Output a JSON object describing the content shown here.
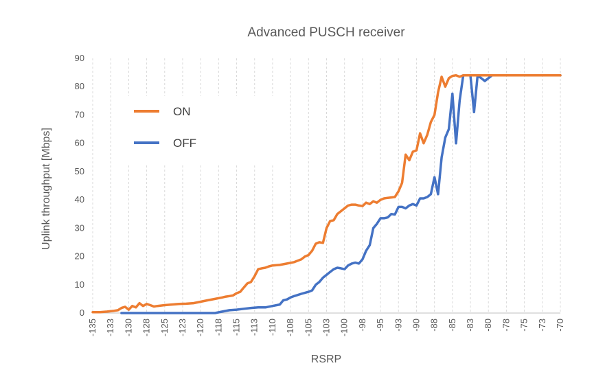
{
  "chart_data": {
    "type": "line",
    "title": "Advanced PUSCH receiver",
    "xlabel": "RSRP",
    "ylabel": "Uplink throughput [Mbps]",
    "xlim": [
      -135,
      -70
    ],
    "ylim": [
      0,
      90
    ],
    "yticks": [
      0,
      10,
      20,
      30,
      40,
      50,
      60,
      70,
      80,
      90
    ],
    "xtick_values": [
      -135,
      -132.5,
      -130,
      -127.5,
      -125,
      -122.5,
      -120,
      -117.5,
      -115,
      -112.5,
      -110,
      -107.5,
      -105,
      -102.5,
      -100,
      -97.5,
      -95,
      -92.5,
      -90,
      -87.5,
      -85,
      -82.5,
      -80,
      -77.5,
      -75,
      -72.5,
      -70
    ],
    "xtick_labels": [
      "-135",
      "-133",
      "-130",
      "-128",
      "-125",
      "-123",
      "-120",
      "-118",
      "-115",
      "-113",
      "-110",
      "-108",
      "-105",
      "-103",
      "-100",
      "-98",
      "-95",
      "-93",
      "-90",
      "-88",
      "-85",
      "-83",
      "-80",
      "-78",
      "-75",
      "-73",
      "-70"
    ],
    "grid": "vertical dashed",
    "legend_position": "upper-left",
    "series": [
      {
        "name": "ON",
        "color": "#ed7d31",
        "x": [
          -135,
          -134,
          -133,
          -132,
          -131.5,
          -131,
          -130.5,
          -130,
          -129.5,
          -129,
          -128.5,
          -128,
          -127.5,
          -127,
          -126.5,
          -126,
          -125,
          -124,
          -123,
          -122,
          -121,
          -120,
          -119,
          -118,
          -117,
          -116.5,
          -116,
          -115.5,
          -115,
          -114.5,
          -114,
          -113.5,
          -113,
          -112.5,
          -112,
          -111.5,
          -111,
          -110.5,
          -110,
          -109,
          -108,
          -107,
          -106,
          -105.5,
          -105,
          -104.5,
          -104,
          -103.5,
          -103,
          -102.5,
          -102,
          -101.5,
          -101,
          -100.5,
          -100,
          -99.5,
          -99,
          -98.5,
          -98,
          -97.5,
          -97,
          -96.5,
          -96,
          -95.5,
          -95,
          -94.5,
          -94,
          -93,
          -92.5,
          -92,
          -91.5,
          -91,
          -90.5,
          -90,
          -89.5,
          -89,
          -88.5,
          -88,
          -87.5,
          -87,
          -86.5,
          -86,
          -85.5,
          -85,
          -84.5,
          -84,
          -83.5,
          -83,
          -82.5,
          -82,
          -81.5,
          -81,
          -80.5,
          -80,
          -79.5,
          -79,
          -78,
          -77,
          -76,
          -75,
          -74,
          -73,
          -72,
          -71,
          -70
        ],
        "values": [
          0.3,
          0.3,
          0.5,
          0.8,
          1.0,
          1.8,
          2.2,
          1.2,
          2.5,
          2.0,
          3.5,
          2.5,
          3.2,
          2.8,
          2.3,
          2.5,
          2.8,
          3.0,
          3.2,
          3.3,
          3.5,
          4.0,
          4.5,
          5.0,
          5.5,
          5.8,
          6.0,
          6.2,
          7.0,
          7.5,
          9.0,
          10.5,
          11.0,
          13.0,
          15.5,
          15.8,
          16.0,
          16.5,
          16.8,
          17.0,
          17.5,
          18.0,
          19.0,
          20.0,
          20.5,
          22.0,
          24.5,
          25.0,
          24.8,
          30.0,
          32.5,
          32.8,
          35.0,
          36.0,
          37.0,
          38.0,
          38.3,
          38.3,
          38.0,
          37.8,
          39.0,
          38.5,
          39.5,
          39.0,
          40.0,
          40.5,
          40.7,
          41.0,
          43.0,
          46.0,
          56.0,
          54.0,
          57.0,
          57.5,
          63.5,
          60.0,
          63.0,
          67.5,
          70.0,
          78.0,
          83.5,
          80.0,
          83.0,
          83.8,
          84.0,
          83.5,
          84.0,
          84.0,
          84.0,
          84.0,
          84.0,
          84.0,
          84.0,
          84.0,
          84.0,
          84.0,
          84.0,
          84.0,
          84.0,
          84.0,
          84.0,
          84.0,
          84.0,
          84.0,
          84.0
        ]
      },
      {
        "name": "OFF",
        "color": "#4472c4",
        "x": [
          -131,
          -130,
          -128,
          -126,
          -124,
          -122,
          -120,
          -118,
          -117,
          -116,
          -115,
          -114,
          -113,
          -112,
          -111,
          -110,
          -109,
          -108.5,
          -108,
          -107.5,
          -107,
          -106,
          -105,
          -104.5,
          -104,
          -103.5,
          -103,
          -102.5,
          -102,
          -101.5,
          -101,
          -100.5,
          -100,
          -99.5,
          -99,
          -98.5,
          -98,
          -97.5,
          -97,
          -96.5,
          -96,
          -95.5,
          -95,
          -94.5,
          -94,
          -93.5,
          -93,
          -92.5,
          -92,
          -91.5,
          -91,
          -90.5,
          -90,
          -89.5,
          -89,
          -88.5,
          -88,
          -87.5,
          -87,
          -86.5,
          -86,
          -85.5,
          -85,
          -84.5,
          -84,
          -83.5,
          -83,
          -82.5,
          -82,
          -81.5,
          -81,
          -80.5,
          -80,
          -79.5,
          -79,
          -78,
          -77,
          -76,
          -75,
          -74,
          -73,
          -72,
          -71,
          -70
        ],
        "values": [
          0,
          0,
          0,
          0,
          0,
          0,
          0,
          0,
          0.5,
          1.0,
          1.2,
          1.5,
          1.8,
          2.0,
          2.0,
          2.5,
          3.0,
          4.5,
          4.8,
          5.5,
          6.0,
          6.8,
          7.5,
          8.0,
          10.0,
          11.0,
          12.5,
          13.5,
          14.5,
          15.5,
          16.0,
          15.8,
          15.5,
          16.8,
          17.5,
          17.8,
          17.5,
          19.0,
          22.0,
          24.0,
          30.0,
          31.5,
          33.5,
          33.5,
          33.8,
          35.0,
          34.8,
          37.5,
          37.5,
          37.0,
          38.0,
          38.5,
          38.0,
          40.5,
          40.5,
          41.0,
          42.0,
          48.0,
          42.0,
          55.0,
          62.0,
          65.0,
          77.5,
          60.0,
          75.0,
          84.0,
          84.0,
          84.0,
          71.0,
          84.0,
          83.0,
          82.0,
          83.0,
          84.0,
          84.0,
          84.0,
          84.0,
          84.0,
          84.0,
          84.0,
          84.0,
          84.0,
          84.0,
          84.0
        ]
      }
    ]
  }
}
